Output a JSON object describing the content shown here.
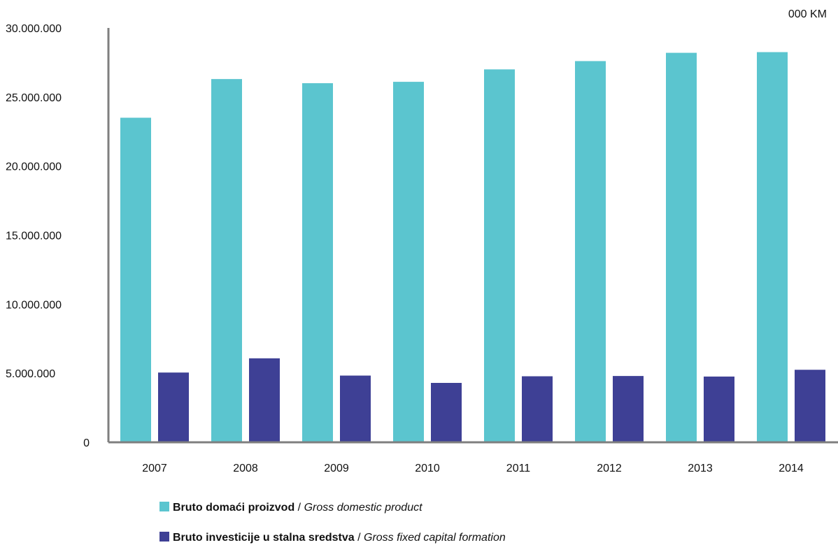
{
  "chart_data": {
    "type": "bar",
    "title": "",
    "xlabel": "",
    "ylabel": "",
    "unit_label": "000 KM",
    "categories": [
      "2007",
      "2008",
      "2009",
      "2010",
      "2011",
      "2012",
      "2013",
      "2014"
    ],
    "series": [
      {
        "name": "Bruto domaći proizvod / Gross domestic product",
        "name_native": "Bruto domaći proizvod",
        "name_english": "Gross domestic product",
        "values": [
          23500000,
          26300000,
          26000000,
          26100000,
          27000000,
          27600000,
          28200000,
          28250000
        ],
        "color": "#5bc5cf"
      },
      {
        "name": "Bruto investicije u stalna sredstva / Gross fixed capital formation",
        "name_native": "Bruto investicije u stalna sredstva",
        "name_english": "Gross fixed capital formation",
        "values": [
          5050000,
          6080000,
          4830000,
          4300000,
          4780000,
          4800000,
          4760000,
          5250000
        ],
        "color": "#3e4095"
      }
    ],
    "ylim": [
      0,
      30000000
    ],
    "yticks": [
      0,
      5000000,
      10000000,
      15000000,
      20000000,
      25000000,
      30000000
    ],
    "ytick_labels": [
      "0",
      "5.000.000",
      "10.000.000",
      "15.000.000",
      "20.000.000",
      "25.000.000",
      "30.000.000"
    ],
    "grid": false,
    "legend_position": "bottom"
  }
}
